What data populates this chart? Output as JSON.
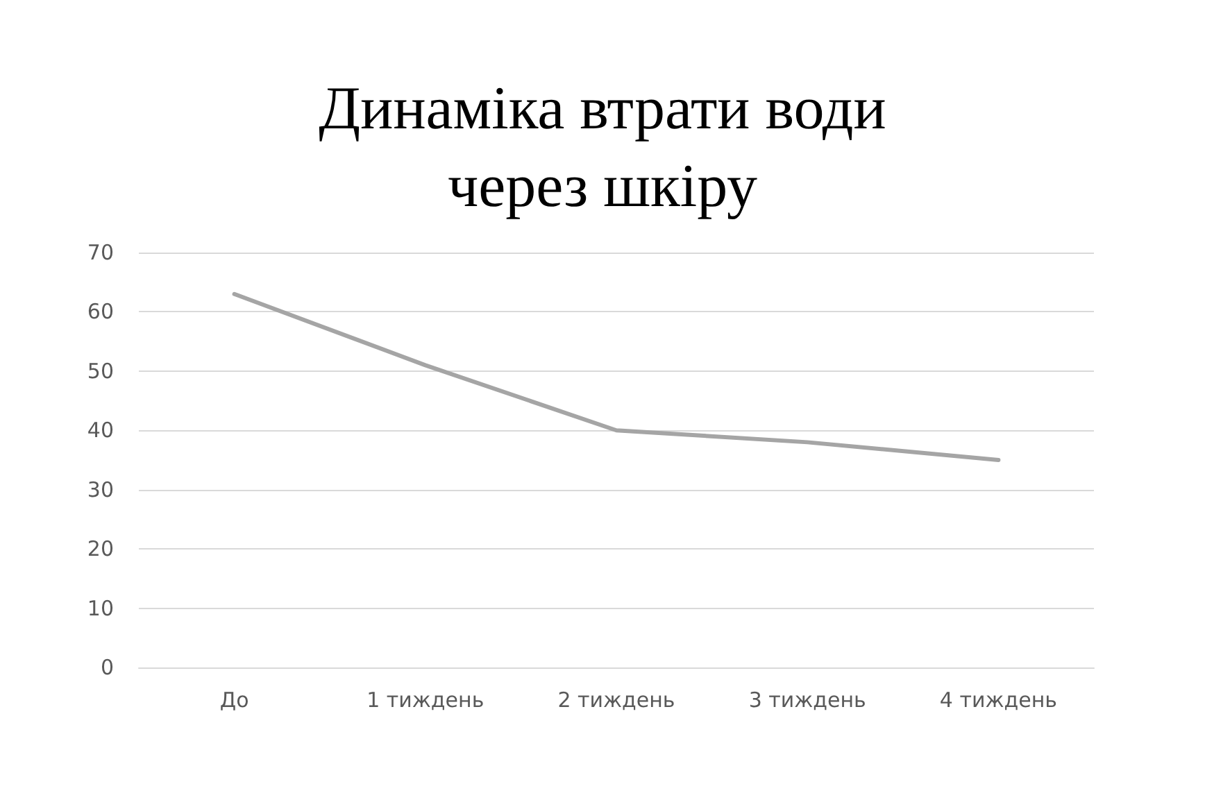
{
  "chart_data": {
    "type": "line",
    "title": "Динаміка втрати води\nчерез шкіру",
    "categories": [
      "До",
      "1 тиждень",
      "2 тиждень",
      "3 тиждень",
      "4 тиждень"
    ],
    "series": [
      {
        "color": "#a5a5a5",
        "values": [
          63,
          51,
          40,
          38,
          35
        ]
      }
    ],
    "ylim": [
      0,
      70
    ],
    "yticks": [
      0,
      10,
      20,
      30,
      40,
      50,
      60,
      70
    ],
    "grid": "y",
    "marker": "none",
    "line_style": "solid"
  }
}
